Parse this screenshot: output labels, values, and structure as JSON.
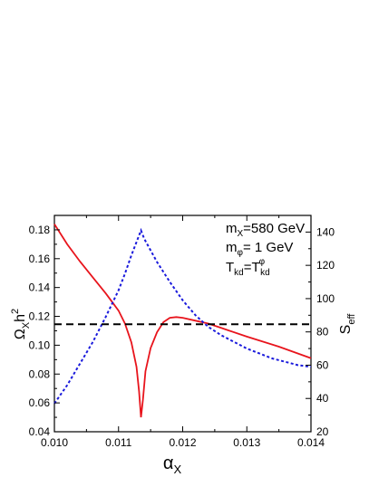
{
  "chart_data": {
    "type": "line",
    "xlabel": "α",
    "xlabel_sub": "X",
    "ylabel_left": "Ω",
    "ylabel_left_sub": "X",
    "ylabel_left_tail": "h",
    "ylabel_left_sup": "2",
    "ylabel_right": "S",
    "ylabel_right_sub": "eff",
    "xlim": [
      0.01,
      0.014
    ],
    "ylim_left": [
      0.04,
      0.19
    ],
    "ylim_right": [
      20,
      150
    ],
    "x_ticks": [
      "0.010",
      "0.011",
      "0.012",
      "0.013",
      "0.014"
    ],
    "y_left_ticks": [
      "0.04",
      "0.06",
      "0.08",
      "0.10",
      "0.12",
      "0.14",
      "0.16",
      "0.18"
    ],
    "y_right_ticks": [
      "20",
      "40",
      "60",
      "80",
      "100",
      "120",
      "140"
    ],
    "annotations": {
      "line1": {
        "a": "m",
        "b": "X",
        "c": "=580 GeV"
      },
      "line2": {
        "a": "m",
        "b": "φ",
        "c": "= 1 GeV"
      },
      "line3": {
        "a": "T",
        "b": "kd",
        "c": "=T",
        "d": "φ",
        "e": "kd"
      }
    },
    "series": [
      {
        "axis": "left",
        "color": "#e8141c",
        "style": "solid",
        "x": [
          0.01,
          0.0102,
          0.0104,
          0.0106,
          0.0108,
          0.011,
          0.0111,
          0.0112,
          0.01128,
          0.01132,
          0.01135,
          0.01138,
          0.01142,
          0.0115,
          0.0116,
          0.0117,
          0.0118,
          0.0119,
          0.012,
          0.0122,
          0.0124,
          0.0126,
          0.013,
          0.0135,
          0.014
        ],
        "y": [
          0.184,
          0.17,
          0.158,
          0.147,
          0.136,
          0.124,
          0.115,
          0.102,
          0.085,
          0.068,
          0.05,
          0.062,
          0.082,
          0.098,
          0.109,
          0.116,
          0.119,
          0.1195,
          0.119,
          0.117,
          0.115,
          0.112,
          0.106,
          0.099,
          0.091
        ]
      },
      {
        "axis": "right",
        "color": "#1a1adc",
        "style": "dotted",
        "x": [
          0.01,
          0.0102,
          0.0104,
          0.0106,
          0.0108,
          0.011,
          0.0111,
          0.0112,
          0.0113,
          0.01135,
          0.0114,
          0.0115,
          0.0116,
          0.0118,
          0.012,
          0.0122,
          0.0124,
          0.0126,
          0.0128,
          0.013,
          0.0132,
          0.0134,
          0.0136,
          0.0138,
          0.014
        ],
        "y": [
          37,
          48,
          61,
          74,
          89,
          105,
          115,
          126,
          136,
          141,
          136,
          129,
          122,
          110,
          99,
          90,
          83,
          78,
          74,
          70,
          67,
          64,
          62,
          60,
          59
        ]
      },
      {
        "axis": "left",
        "color": "#000000",
        "style": "dashed",
        "x": [
          0.01,
          0.014
        ],
        "y": [
          0.1145,
          0.1145
        ]
      }
    ]
  }
}
